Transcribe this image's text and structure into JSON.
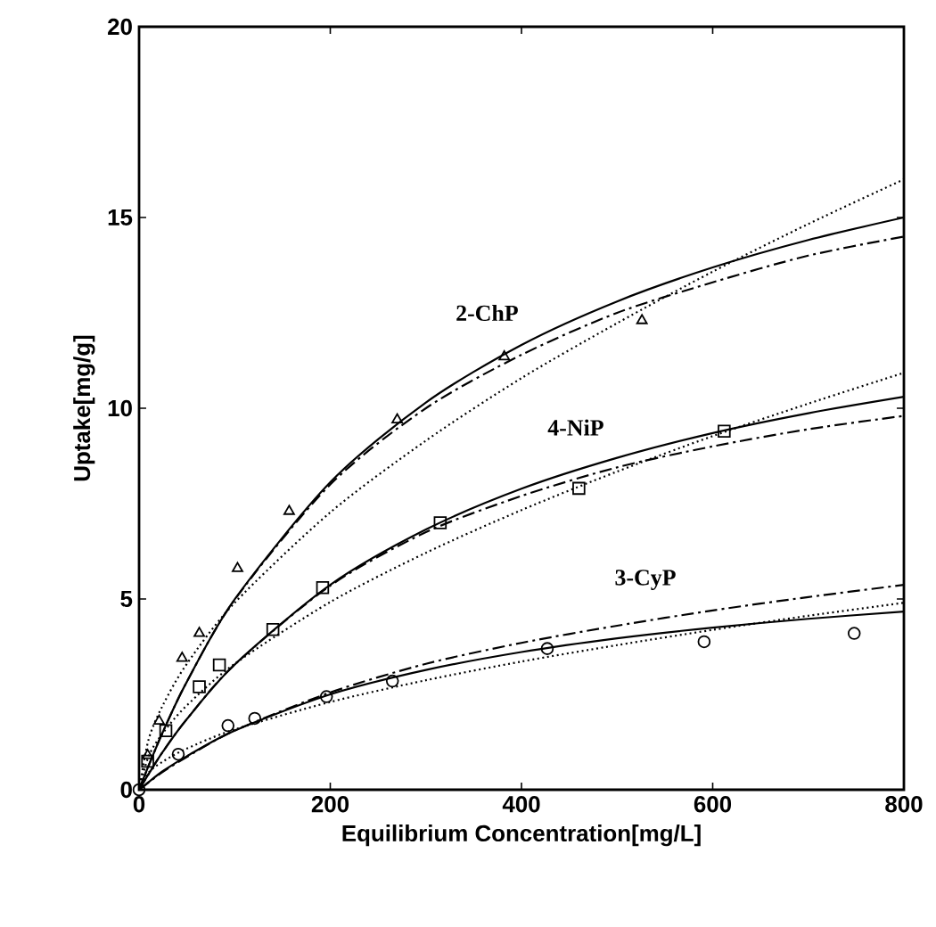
{
  "chart_data": {
    "type": "scatter",
    "xlabel": "Equilibrium Concentration[mg/L]",
    "ylabel": "Uptake[mg/g]",
    "xlim": [
      0,
      800
    ],
    "ylim": [
      0,
      20
    ],
    "xticks": [
      0,
      200,
      400,
      600,
      800
    ],
    "yticks": [
      0,
      5,
      10,
      15,
      20
    ],
    "grid": false,
    "series": [
      {
        "marker": "triangle",
        "color": "#000000",
        "x": [
          9,
          21,
          45,
          63,
          103,
          157,
          270,
          382,
          526
        ],
        "values": [
          0.9,
          1.8,
          3.45,
          4.1,
          5.8,
          7.3,
          9.7,
          11.35,
          12.3
        ]
      },
      {
        "marker": "square",
        "color": "#000000",
        "x": [
          9,
          28,
          63,
          84,
          140,
          192,
          315,
          460,
          612
        ],
        "values": [
          0.75,
          1.55,
          2.7,
          3.27,
          4.2,
          5.3,
          7.0,
          7.9,
          9.4
        ]
      },
      {
        "marker": "circle",
        "color": "#000000",
        "x": [
          0,
          41,
          93,
          121,
          196,
          265,
          427,
          591,
          748
        ],
        "values": [
          0,
          0.93,
          1.68,
          1.87,
          2.44,
          2.85,
          3.7,
          3.88,
          4.1
        ]
      },
      {
        "type": "line",
        "line_style": "solid",
        "color": "#000000",
        "x": [
          0,
          10,
          25,
          50,
          100,
          200,
          300,
          400,
          500,
          600,
          700,
          800
        ],
        "values": [
          0,
          0.63,
          1.52,
          2.83,
          4.99,
          8.06,
          10.15,
          11.66,
          12.8,
          13.69,
          14.41,
          15.0
        ]
      },
      {
        "type": "line",
        "line_style": "dashed",
        "color": "#000000",
        "x": [
          0,
          10,
          25,
          50,
          100,
          200,
          300,
          400,
          500,
          600,
          700,
          800
        ],
        "values": [
          0,
          0.63,
          1.52,
          2.83,
          4.98,
          8.0,
          10.0,
          11.4,
          12.5,
          13.3,
          14.0,
          14.5
        ]
      },
      {
        "type": "line",
        "line_style": "dotted",
        "color": "#000000",
        "x": [
          0,
          10,
          25,
          50,
          100,
          200,
          300,
          400,
          500,
          600,
          700,
          800
        ],
        "values": [
          0,
          1.32,
          2.22,
          3.3,
          4.9,
          7.27,
          9.15,
          10.79,
          12.23,
          13.58,
          14.83,
          16.0
        ]
      },
      {
        "type": "line",
        "line_style": "solid",
        "color": "#000000",
        "x": [
          0,
          10,
          25,
          50,
          100,
          200,
          300,
          400,
          500,
          600,
          700,
          800
        ],
        "values": [
          0,
          0.41,
          1.0,
          1.85,
          3.28,
          5.37,
          6.82,
          7.89,
          8.7,
          9.35,
          9.87,
          10.3
        ]
      },
      {
        "type": "line",
        "line_style": "dashed",
        "color": "#000000",
        "x": [
          0,
          10,
          25,
          50,
          100,
          200,
          300,
          400,
          500,
          600,
          700,
          800
        ],
        "values": [
          0,
          0.41,
          1.0,
          1.85,
          3.28,
          5.35,
          6.75,
          7.7,
          8.45,
          9.0,
          9.45,
          9.8
        ]
      },
      {
        "type": "line",
        "line_style": "dotted",
        "color": "#000000",
        "x": [
          0,
          10,
          25,
          50,
          100,
          200,
          300,
          400,
          500,
          600,
          700,
          800
        ],
        "values": [
          0,
          0.88,
          1.49,
          2.21,
          3.3,
          4.92,
          6.21,
          7.33,
          8.34,
          9.27,
          10.12,
          10.93
        ]
      },
      {
        "type": "line",
        "line_style": "solid",
        "color": "#000000",
        "x": [
          0,
          10,
          25,
          50,
          100,
          200,
          300,
          400,
          500,
          600,
          700,
          800
        ],
        "values": [
          0,
          0.2,
          0.49,
          0.88,
          1.55,
          2.5,
          3.14,
          3.61,
          3.97,
          4.25,
          4.48,
          4.67
        ]
      },
      {
        "type": "line",
        "line_style": "dashed",
        "color": "#000000",
        "x": [
          0,
          10,
          25,
          50,
          100,
          200,
          300,
          400,
          500,
          600,
          700,
          800
        ],
        "values": [
          0,
          0.19,
          0.47,
          0.86,
          1.55,
          2.55,
          3.3,
          3.85,
          4.3,
          4.7,
          5.05,
          5.37
        ]
      },
      {
        "type": "line",
        "line_style": "dotted",
        "color": "#000000",
        "x": [
          0,
          10,
          25,
          50,
          100,
          200,
          300,
          400,
          500,
          600,
          700,
          800
        ],
        "values": [
          0,
          0.45,
          0.74,
          1.08,
          1.58,
          2.3,
          2.87,
          3.36,
          3.79,
          4.19,
          4.56,
          4.9
        ]
      }
    ],
    "annotations": [
      "2-ChP",
      "4-NiP",
      "3-CyP"
    ]
  }
}
